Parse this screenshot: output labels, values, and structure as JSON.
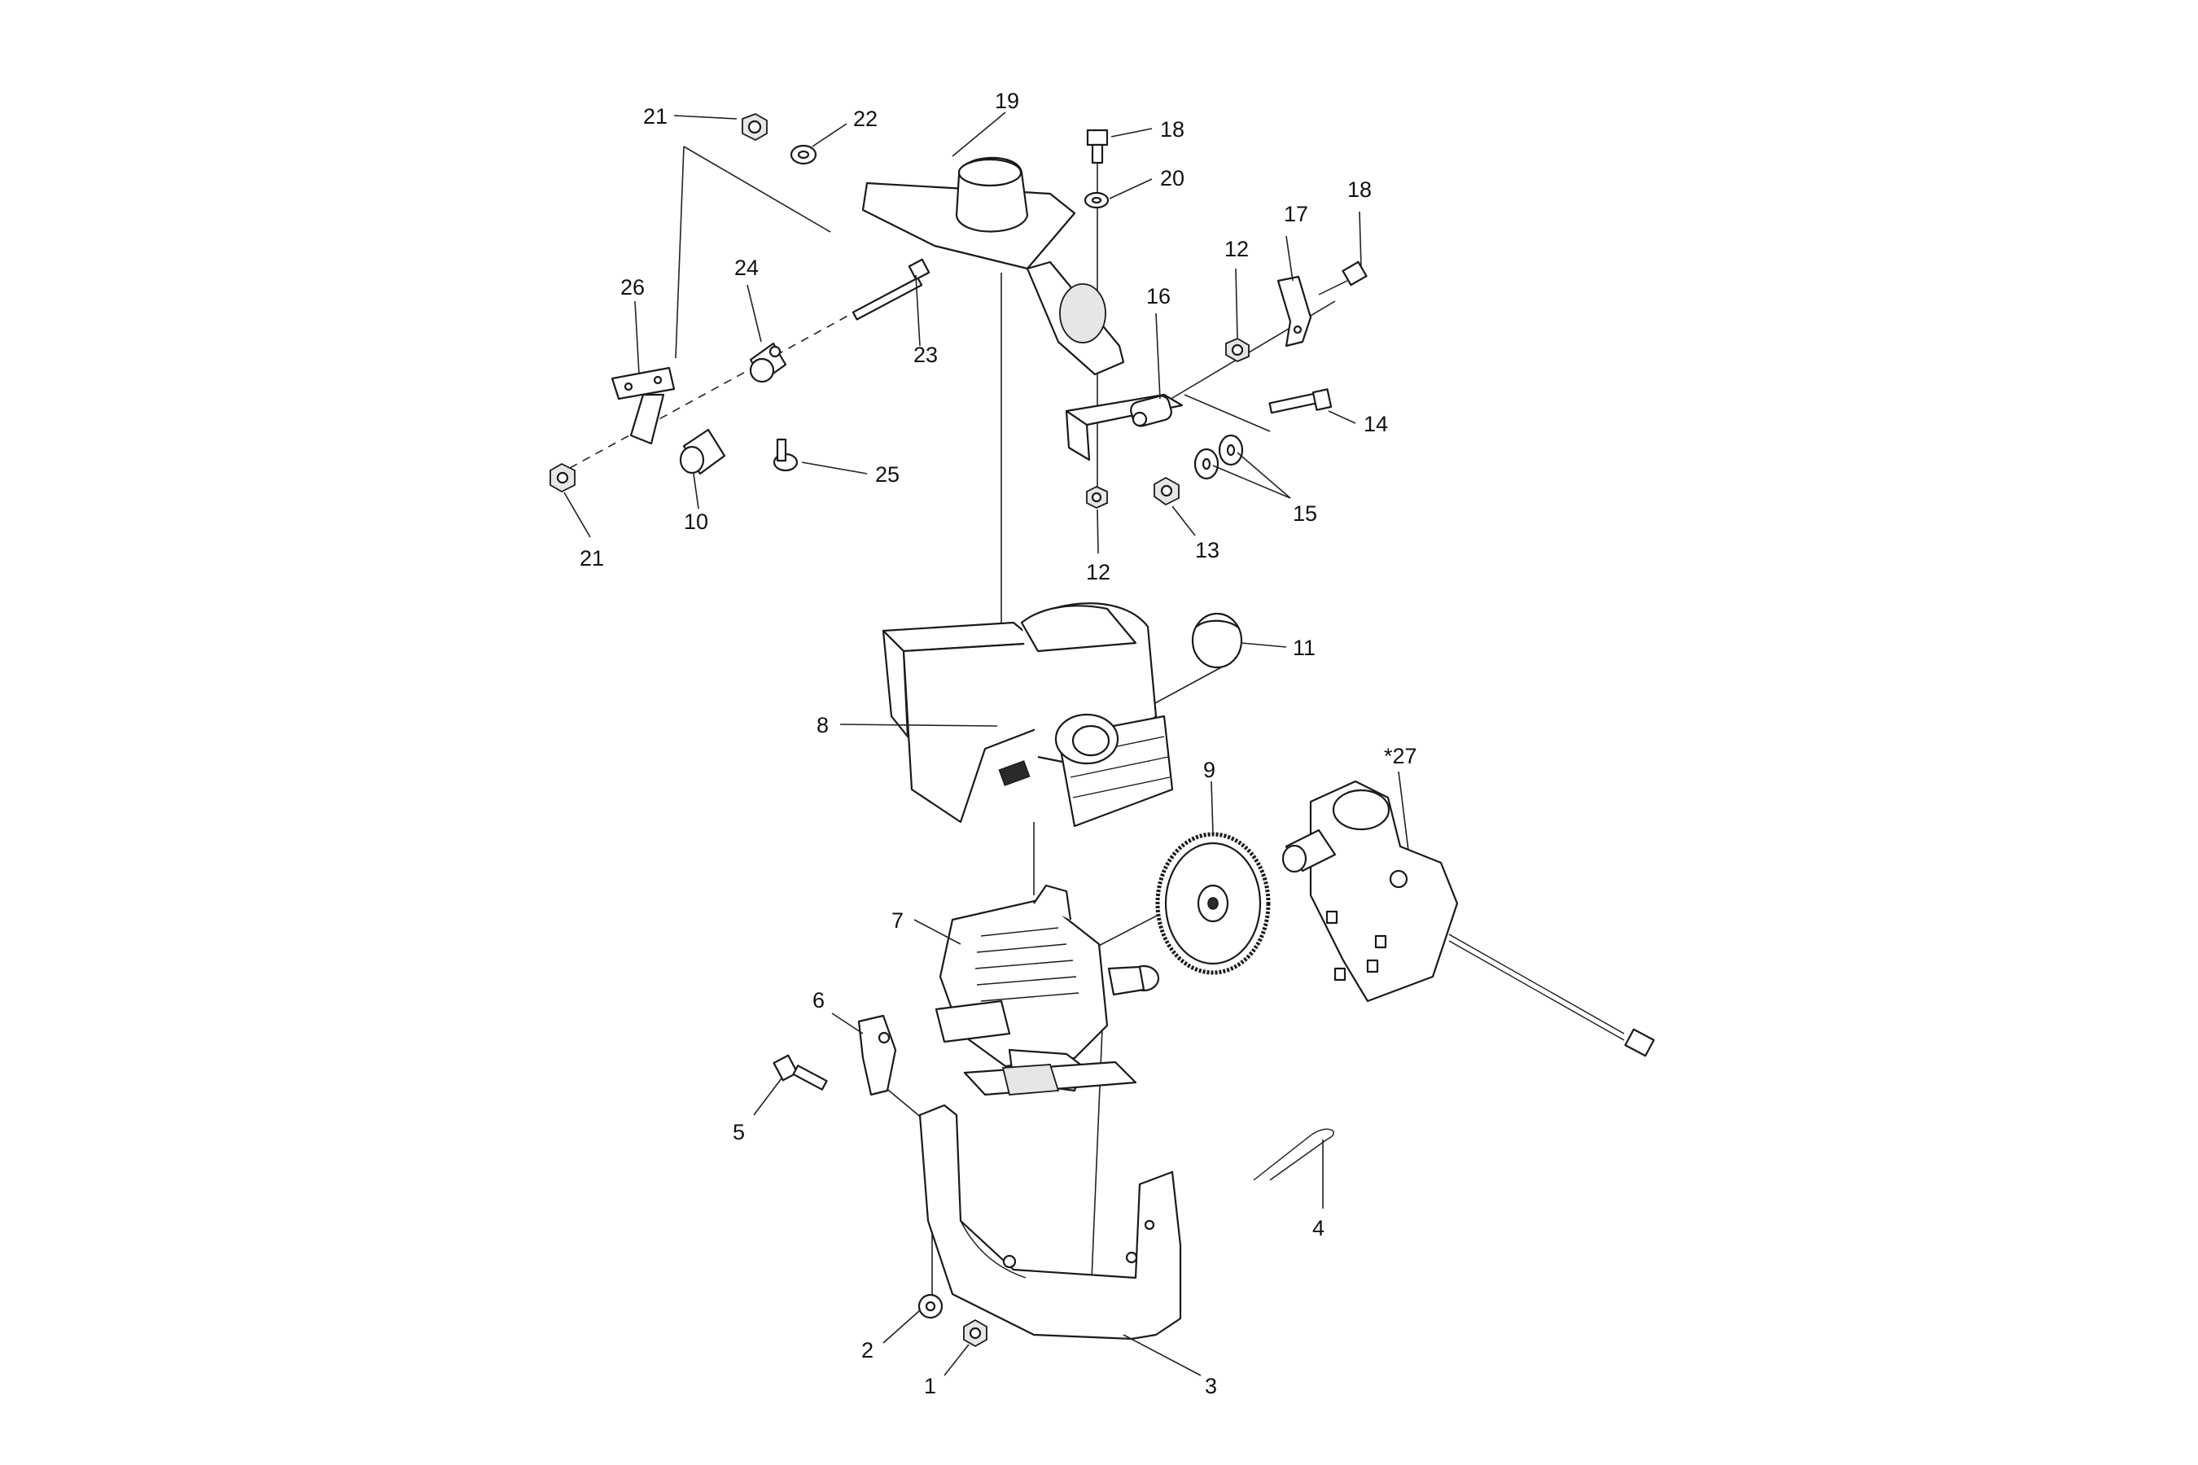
{
  "diagram": {
    "callouts": [
      {
        "id": "c21a",
        "label": "21"
      },
      {
        "id": "c22",
        "label": "22"
      },
      {
        "id": "c19",
        "label": "19"
      },
      {
        "id": "c18a",
        "label": "18"
      },
      {
        "id": "c20",
        "label": "20"
      },
      {
        "id": "c18b",
        "label": "18"
      },
      {
        "id": "c17",
        "label": "17"
      },
      {
        "id": "c12a",
        "label": "12"
      },
      {
        "id": "c16",
        "label": "16"
      },
      {
        "id": "c26",
        "label": "26"
      },
      {
        "id": "c24",
        "label": "24"
      },
      {
        "id": "c23",
        "label": "23"
      },
      {
        "id": "c14",
        "label": "14"
      },
      {
        "id": "c25",
        "label": "25"
      },
      {
        "id": "c15",
        "label": "15"
      },
      {
        "id": "c10",
        "label": "10"
      },
      {
        "id": "c13",
        "label": "13"
      },
      {
        "id": "c21b",
        "label": "21"
      },
      {
        "id": "c12b",
        "label": "12"
      },
      {
        "id": "c11",
        "label": "11"
      },
      {
        "id": "c8",
        "label": "8"
      },
      {
        "id": "c27",
        "label": "*27"
      },
      {
        "id": "c9",
        "label": "9"
      },
      {
        "id": "c7",
        "label": "7"
      },
      {
        "id": "c6",
        "label": "6"
      },
      {
        "id": "c5",
        "label": "5"
      },
      {
        "id": "c4",
        "label": "4"
      },
      {
        "id": "c2",
        "label": "2"
      },
      {
        "id": "c1",
        "label": "1"
      },
      {
        "id": "c3",
        "label": "3"
      }
    ]
  }
}
